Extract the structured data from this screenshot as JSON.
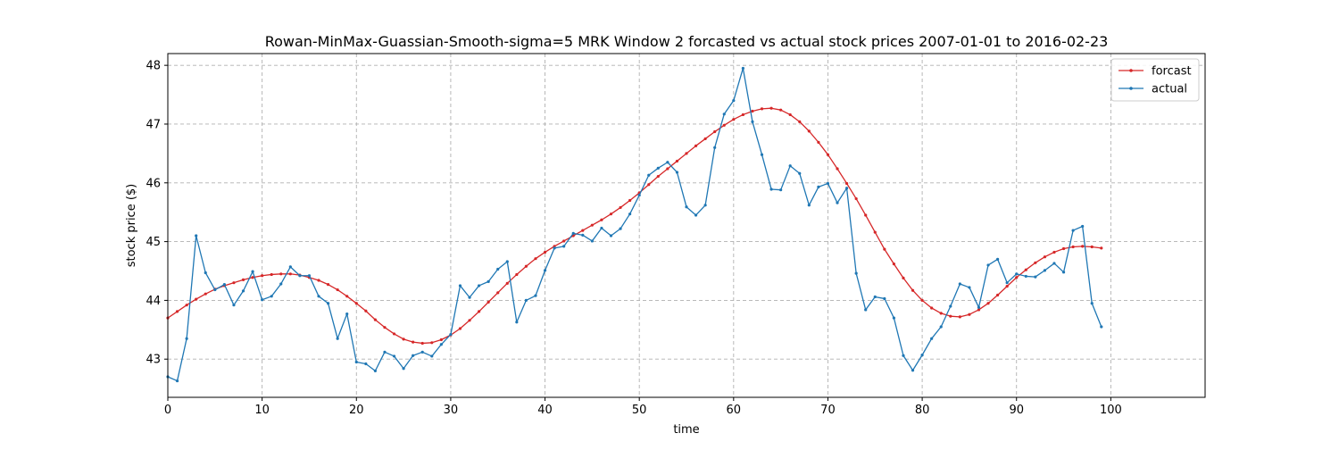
{
  "chart_data": {
    "type": "line",
    "title": "Rowan-MinMax-Guassian-Smooth-sigma=5 MRK Window 2 forcasted vs actual stock prices 2007-01-01 to 2016-02-23",
    "xlabel": "time",
    "ylabel": "stock price ($)",
    "xlim": [
      0,
      110
    ],
    "ylim": [
      42.35,
      48.2
    ],
    "xticks": [
      0,
      10,
      20,
      30,
      40,
      50,
      60,
      70,
      80,
      90,
      100
    ],
    "yticks": [
      43,
      44,
      45,
      46,
      47,
      48
    ],
    "grid": true,
    "legend_position": "top-right",
    "x": [
      0,
      1,
      2,
      3,
      4,
      5,
      6,
      7,
      8,
      9,
      10,
      11,
      12,
      13,
      14,
      15,
      16,
      17,
      18,
      19,
      20,
      21,
      22,
      23,
      24,
      25,
      26,
      27,
      28,
      29,
      30,
      31,
      32,
      33,
      34,
      35,
      36,
      37,
      38,
      39,
      40,
      41,
      42,
      43,
      44,
      45,
      46,
      47,
      48,
      49,
      50,
      51,
      52,
      53,
      54,
      55,
      56,
      57,
      58,
      59,
      60,
      61,
      62,
      63,
      64,
      65,
      66,
      67,
      68,
      69,
      70,
      71,
      72,
      73,
      74,
      75,
      76,
      77,
      78,
      79,
      80,
      81,
      82,
      83,
      84,
      85,
      86,
      87,
      88,
      89,
      90,
      91,
      92,
      93,
      94,
      95,
      96,
      97,
      98,
      99
    ],
    "series": [
      {
        "name": "forcast",
        "color": "#d62728",
        "values": [
          43.7,
          43.81,
          43.92,
          44.02,
          44.11,
          44.19,
          44.25,
          44.3,
          44.35,
          44.39,
          44.42,
          44.44,
          44.45,
          44.45,
          44.43,
          44.39,
          44.34,
          44.27,
          44.18,
          44.07,
          43.95,
          43.82,
          43.67,
          43.54,
          43.43,
          43.34,
          43.29,
          43.27,
          43.28,
          43.33,
          43.41,
          43.52,
          43.66,
          43.81,
          43.97,
          44.13,
          44.29,
          44.44,
          44.58,
          44.71,
          44.82,
          44.92,
          45.01,
          45.1,
          45.19,
          45.28,
          45.37,
          45.47,
          45.58,
          45.7,
          45.83,
          45.97,
          46.11,
          46.24,
          46.37,
          46.5,
          46.63,
          46.75,
          46.87,
          46.98,
          47.08,
          47.16,
          47.22,
          47.26,
          47.27,
          47.24,
          47.16,
          47.04,
          46.88,
          46.69,
          46.48,
          46.24,
          45.99,
          45.73,
          45.45,
          45.16,
          44.87,
          44.62,
          44.38,
          44.17,
          44.0,
          43.87,
          43.78,
          43.73,
          43.72,
          43.76,
          43.84,
          43.95,
          44.09,
          44.24,
          44.39,
          44.52,
          44.64,
          44.74,
          44.82,
          44.88,
          44.91,
          44.92,
          44.91,
          44.89
        ]
      },
      {
        "name": "actual",
        "color": "#1f77b4",
        "values": [
          42.7,
          42.63,
          43.35,
          45.1,
          44.47,
          44.18,
          44.27,
          43.92,
          44.16,
          44.49,
          44.01,
          44.07,
          44.28,
          44.57,
          44.42,
          44.42,
          44.07,
          43.95,
          43.35,
          43.77,
          42.95,
          42.92,
          42.8,
          43.12,
          43.05,
          42.84,
          43.06,
          43.12,
          43.05,
          43.25,
          43.42,
          44.25,
          44.05,
          44.25,
          44.32,
          44.53,
          44.66,
          43.63,
          44.0,
          44.08,
          44.51,
          44.89,
          44.92,
          45.14,
          45.11,
          45.01,
          45.23,
          45.1,
          45.22,
          45.47,
          45.79,
          46.13,
          46.25,
          46.35,
          46.18,
          45.59,
          45.45,
          45.62,
          46.6,
          47.17,
          47.4,
          47.95,
          47.04,
          46.48,
          45.89,
          45.88,
          46.29,
          46.16,
          45.62,
          45.93,
          45.99,
          45.66,
          45.91,
          44.46,
          43.84,
          44.06,
          44.03,
          43.7,
          43.06,
          42.81,
          43.07,
          43.35,
          43.55,
          43.9,
          44.28,
          44.22,
          43.88,
          44.6,
          44.7,
          44.3,
          44.45,
          44.41,
          44.4,
          44.51,
          44.63,
          44.48,
          45.19,
          45.26,
          43.95,
          43.55
        ]
      }
    ]
  }
}
